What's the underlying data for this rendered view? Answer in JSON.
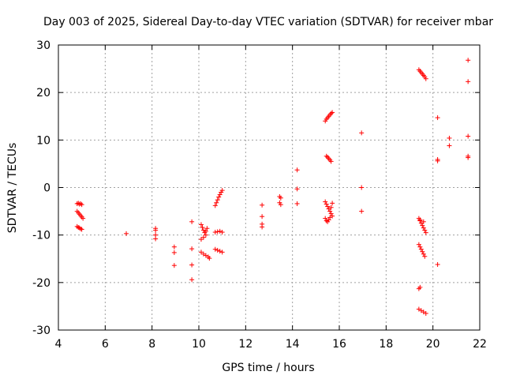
{
  "chart_data": {
    "type": "scatter",
    "title": "Day 003 of 2025, Sidereal Day-to-day VTEC variation (SDTVAR) for receiver mbar",
    "xlabel": "GPS time / hours",
    "ylabel": "SDTVAR / TECUs",
    "xlim": [
      4,
      22
    ],
    "ylim": [
      -30,
      30
    ],
    "xticks": [
      "4",
      "6",
      "8",
      "10",
      "12",
      "14",
      "16",
      "18",
      "20",
      "22"
    ],
    "yticks": [
      "-30",
      "-20",
      "-10",
      "0",
      "10",
      "20",
      "30"
    ],
    "grid": true,
    "marker": "plus",
    "color": "#ff0000",
    "series": [
      {
        "name": "SDTVAR",
        "points": [
          [
            4.8,
            -3.4
          ],
          [
            4.85,
            -3.3
          ],
          [
            4.9,
            -3.5
          ],
          [
            4.95,
            -3.4
          ],
          [
            5.0,
            -3.6
          ],
          [
            4.8,
            -5.0
          ],
          [
            4.85,
            -5.3
          ],
          [
            4.9,
            -5.6
          ],
          [
            4.95,
            -5.9
          ],
          [
            5.0,
            -6.2
          ],
          [
            5.05,
            -6.5
          ],
          [
            4.8,
            -8.2
          ],
          [
            4.85,
            -8.4
          ],
          [
            4.9,
            -8.5
          ],
          [
            4.95,
            -8.7
          ],
          [
            5.0,
            -8.8
          ],
          [
            6.9,
            -9.7
          ],
          [
            8.15,
            -8.6
          ],
          [
            8.15,
            -9.0
          ],
          [
            8.15,
            -10.0
          ],
          [
            8.15,
            -10.8
          ],
          [
            8.95,
            -12.5
          ],
          [
            8.95,
            -13.7
          ],
          [
            8.95,
            -16.4
          ],
          [
            9.7,
            -7.2
          ],
          [
            9.7,
            -12.9
          ],
          [
            9.7,
            -16.3
          ],
          [
            9.7,
            -19.4
          ],
          [
            10.1,
            -7.8
          ],
          [
            10.15,
            -8.4
          ],
          [
            10.2,
            -9.0
          ],
          [
            10.25,
            -9.5
          ],
          [
            10.3,
            -10.0
          ],
          [
            10.2,
            -10.5
          ],
          [
            10.1,
            -10.9
          ],
          [
            10.3,
            -9.2
          ],
          [
            10.35,
            -8.6
          ],
          [
            10.1,
            -13.6
          ],
          [
            10.2,
            -14.0
          ],
          [
            10.3,
            -14.3
          ],
          [
            10.4,
            -14.6
          ],
          [
            10.45,
            -14.9
          ],
          [
            10.7,
            -3.8
          ],
          [
            10.75,
            -3.2
          ],
          [
            10.8,
            -2.6
          ],
          [
            10.85,
            -2.0
          ],
          [
            10.9,
            -1.5
          ],
          [
            10.95,
            -1.0
          ],
          [
            11.0,
            -0.6
          ],
          [
            10.7,
            -9.4
          ],
          [
            10.8,
            -9.3
          ],
          [
            10.9,
            -9.2
          ],
          [
            11.0,
            -9.4
          ],
          [
            10.7,
            -13.0
          ],
          [
            10.8,
            -13.2
          ],
          [
            10.9,
            -13.4
          ],
          [
            11.0,
            -13.6
          ],
          [
            12.7,
            -3.7
          ],
          [
            12.7,
            -6.1
          ],
          [
            12.7,
            -7.7
          ],
          [
            12.7,
            -8.3
          ],
          [
            13.45,
            -1.9
          ],
          [
            13.5,
            -2.2
          ],
          [
            13.45,
            -3.2
          ],
          [
            13.5,
            -3.6
          ],
          [
            14.2,
            3.7
          ],
          [
            14.2,
            -0.3
          ],
          [
            14.2,
            -3.4
          ],
          [
            15.4,
            14.0
          ],
          [
            15.45,
            14.4
          ],
          [
            15.5,
            14.7
          ],
          [
            15.55,
            15.0
          ],
          [
            15.6,
            15.3
          ],
          [
            15.65,
            15.6
          ],
          [
            15.7,
            15.8
          ],
          [
            15.45,
            6.6
          ],
          [
            15.5,
            6.4
          ],
          [
            15.55,
            6.1
          ],
          [
            15.6,
            5.8
          ],
          [
            15.65,
            5.5
          ],
          [
            15.4,
            -3.0
          ],
          [
            15.45,
            -3.5
          ],
          [
            15.5,
            -4.0
          ],
          [
            15.55,
            -4.5
          ],
          [
            15.6,
            -5.0
          ],
          [
            15.65,
            -5.5
          ],
          [
            15.7,
            -6.0
          ],
          [
            15.4,
            -6.5
          ],
          [
            15.45,
            -7.0
          ],
          [
            15.5,
            -7.2
          ],
          [
            15.55,
            -6.8
          ],
          [
            15.6,
            -6.3
          ],
          [
            15.65,
            -4.2
          ],
          [
            15.7,
            -3.3
          ],
          [
            16.95,
            11.5
          ],
          [
            16.95,
            0.0
          ],
          [
            16.95,
            -5.0
          ],
          [
            19.4,
            24.8
          ],
          [
            19.45,
            24.5
          ],
          [
            19.5,
            24.2
          ],
          [
            19.55,
            23.9
          ],
          [
            19.6,
            23.6
          ],
          [
            19.65,
            23.3
          ],
          [
            19.7,
            22.9
          ],
          [
            19.4,
            -6.5
          ],
          [
            19.45,
            -7.0
          ],
          [
            19.5,
            -7.5
          ],
          [
            19.55,
            -8.0
          ],
          [
            19.6,
            -8.5
          ],
          [
            19.65,
            -9.0
          ],
          [
            19.7,
            -9.5
          ],
          [
            19.45,
            -6.8
          ],
          [
            19.6,
            -7.2
          ],
          [
            19.4,
            -12.0
          ],
          [
            19.45,
            -12.5
          ],
          [
            19.5,
            -13.0
          ],
          [
            19.55,
            -13.5
          ],
          [
            19.6,
            -14.0
          ],
          [
            19.65,
            -14.5
          ],
          [
            19.45,
            -21.0
          ],
          [
            19.4,
            -21.3
          ],
          [
            19.4,
            -25.6
          ],
          [
            19.5,
            -25.9
          ],
          [
            19.6,
            -26.2
          ],
          [
            19.7,
            -26.5
          ],
          [
            20.2,
            14.7
          ],
          [
            20.2,
            5.9
          ],
          [
            20.2,
            5.6
          ],
          [
            20.2,
            -16.2
          ],
          [
            20.7,
            10.4
          ],
          [
            20.7,
            8.8
          ],
          [
            21.5,
            26.8
          ],
          [
            21.5,
            22.3
          ],
          [
            21.5,
            10.8
          ],
          [
            21.5,
            6.6
          ],
          [
            21.5,
            6.3
          ]
        ]
      }
    ]
  }
}
